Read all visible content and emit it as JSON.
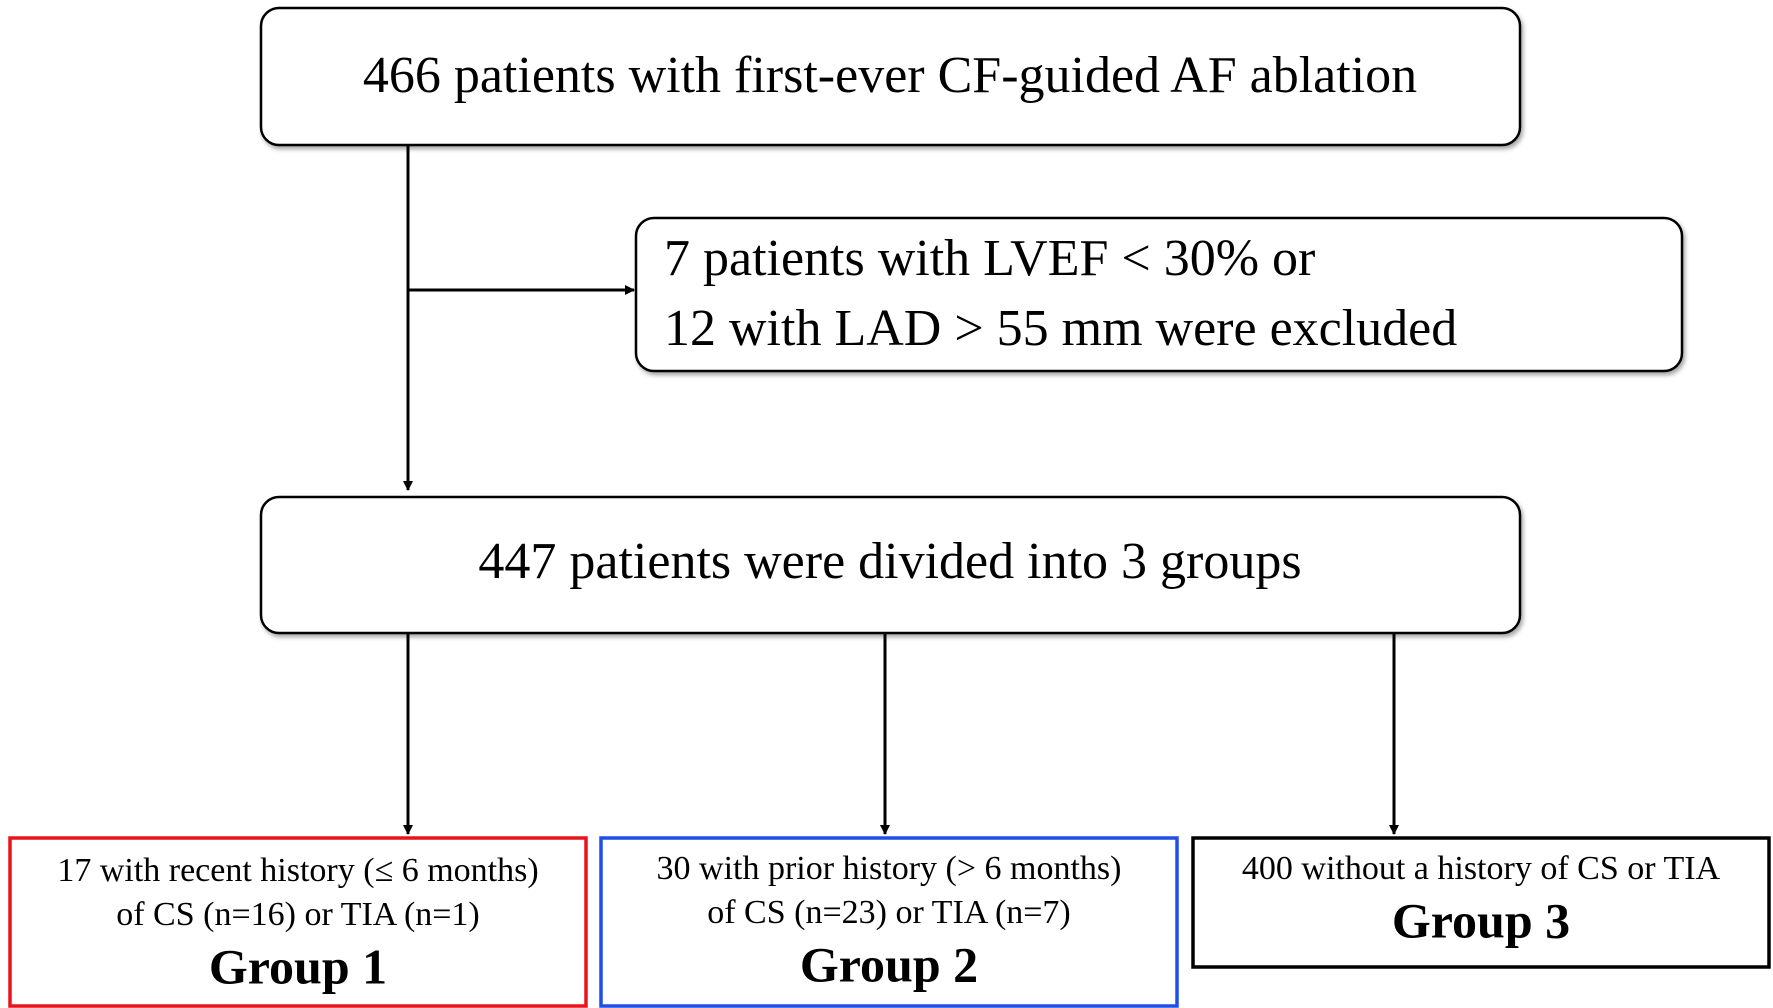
{
  "nodes": [
    {
      "lines": [
        "466 patients with first-ever CF-guided AF ablation"
      ]
    },
    {
      "lines": [
        "7 patients with LVEF < 30% or",
        "12 with LAD > 55 mm were excluded"
      ]
    },
    {
      "lines": [
        "447 patients were divided into 3 groups"
      ]
    },
    {
      "lines": [
        "17 with recent history (≤ 6 months)",
        "of CS (n=16) or TIA (n=1)"
      ],
      "label": "Group 1"
    },
    {
      "lines": [
        "30 with prior history (> 6 months)",
        "of CS (n=23) or TIA (n=7)"
      ],
      "label": "Group 2"
    },
    {
      "lines": [
        "400 without a history of CS or TIA"
      ],
      "label": "Group 3"
    }
  ]
}
